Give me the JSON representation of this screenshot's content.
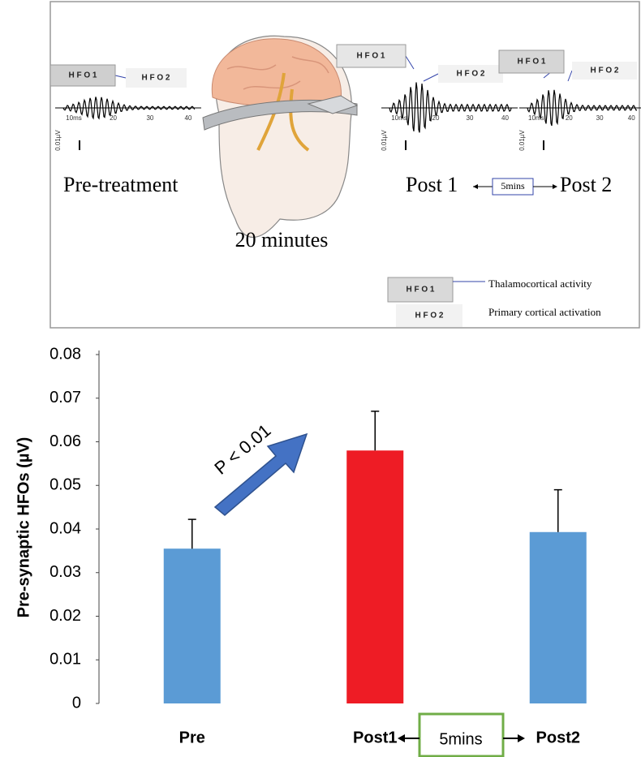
{
  "diagram": {
    "hfo1": "H F O 1",
    "hfo2": "H F O 2",
    "time_ticks": [
      "10ms",
      "20",
      "30",
      "40"
    ],
    "scale": "0.01µV",
    "pre": "Pre-treatment",
    "duration": "20 minutes",
    "post1": "Post 1",
    "interval": "5mins",
    "post2": "Post 2",
    "legend": [
      "Thalamocortical activity",
      "Primary cortical activation"
    ]
  },
  "chart_data": {
    "type": "bar",
    "ylabel": "Pre-synaptic HFOs (µV)",
    "categories": [
      "Pre",
      "Post1",
      "Post2"
    ],
    "values": [
      0.0355,
      0.058,
      0.0393
    ],
    "errors": [
      0.0067,
      0.009,
      0.0097
    ],
    "colors": [
      "#5b9bd5",
      "#ee1c25",
      "#5b9bd5"
    ],
    "ylim": [
      0,
      0.08
    ],
    "yticks": [
      0,
      0.01,
      0.02,
      0.03,
      0.04,
      0.05,
      0.06,
      0.07,
      0.08
    ],
    "annotations": {
      "significance": "P < 0.01",
      "interval": "5mins"
    }
  }
}
